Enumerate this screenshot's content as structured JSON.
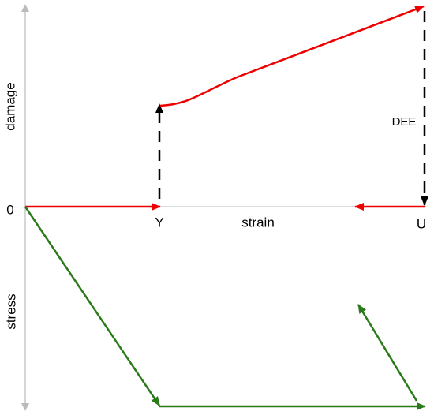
{
  "labels": {
    "damage_axis": "damage",
    "stress_axis": "stress",
    "origin": "0",
    "yield": "Y",
    "strain_axis": "strain",
    "ultimate": "U",
    "dee": "DEE"
  }
}
